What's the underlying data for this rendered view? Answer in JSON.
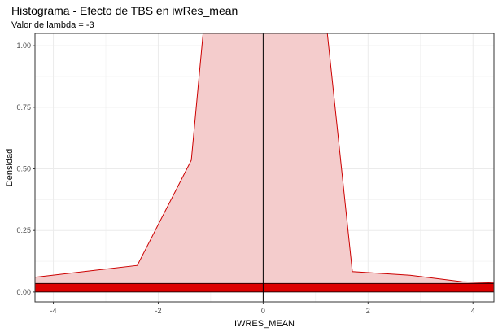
{
  "chart_data": {
    "type": "area",
    "title": "Histograma - Efecto de TBS en iwRes_mean",
    "subtitle": "Valor de lambda = -3",
    "xlabel": "IWRES_MEAN",
    "ylabel": "Densidad",
    "xlim": [
      -4.35,
      4.4
    ],
    "ylim": [
      -0.04,
      1.05
    ],
    "x_ticks": [
      -4,
      -2,
      0,
      2,
      4
    ],
    "x_tick_labels": [
      "-4",
      "-2",
      "0",
      "2",
      "4"
    ],
    "y_ticks": [
      0.0,
      0.25,
      0.5,
      0.75,
      1.0
    ],
    "y_tick_labels": [
      "0.00",
      "0.25",
      "0.50",
      "0.75",
      "1.00"
    ],
    "grid": true,
    "density": {
      "x": [
        -4.35,
        -2.4,
        -1.37,
        -1.08,
        1.15,
        1.7,
        2.8,
        3.8,
        4.4
      ],
      "y": [
        0.06,
        0.108,
        0.535,
        1.2,
        1.2,
        0.083,
        0.068,
        0.042,
        0.037
      ]
    },
    "histogram_band": {
      "ymin": 0.0,
      "ymax": 0.035
    },
    "vline_x": 0,
    "colors": {
      "fill": "#f4cccc",
      "line": "#cc0000",
      "bar": "#dd0000",
      "grid": "#ebebeb",
      "panel_border": "#333333"
    }
  }
}
